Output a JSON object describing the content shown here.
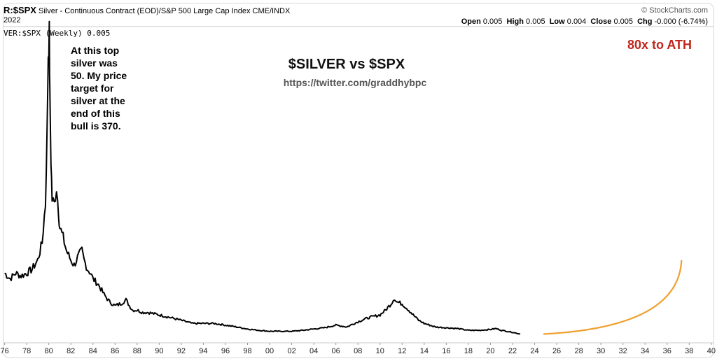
{
  "header": {
    "symbol": "R:$SPX",
    "description": "Silver - Continuous Contract (EOD)/S&P 500 Large Cap Index",
    "exchange": "CME/INDX",
    "date": "2022",
    "watermark": "© StockCharts.com",
    "ohlc": [
      {
        "label": "Open",
        "value": "0.005"
      },
      {
        "label": "High",
        "value": "0.005"
      },
      {
        "label": "Low",
        "value": "0.004"
      },
      {
        "label": "Close",
        "value": "0.005"
      },
      {
        "label": "Chg",
        "value": "-0.000 (-6.74%)"
      }
    ],
    "series_label": "VER:$SPX (Weekly) 0.005"
  },
  "annotations": {
    "title": "$SILVER vs $SPX",
    "url": "https://twitter.com/graddhybpc",
    "note_lines": [
      "At this top",
      "silver was",
      "50. My price",
      "target for",
      "silver at the",
      "end of this",
      "bull is 370."
    ],
    "target_label": "80x to ATH"
  },
  "colors": {
    "price_line": "#000000",
    "projection": "#f0a030",
    "target_text": "#c0261c",
    "url_text": "#555555"
  },
  "chart_data": {
    "type": "line",
    "title": "$SILVER vs $SPX",
    "xlabel": "",
    "ylabel": "",
    "x_ticks": [
      "76",
      "78",
      "80",
      "82",
      "84",
      "86",
      "88",
      "90",
      "92",
      "94",
      "96",
      "98",
      "00",
      "02",
      "04",
      "06",
      "08",
      "10",
      "12",
      "14",
      "16",
      "18",
      "20",
      "22",
      "24",
      "26",
      "28",
      "30",
      "32",
      "34",
      "36",
      "38",
      "40"
    ],
    "xlim": [
      1975.9,
      2040.2
    ],
    "series": [
      {
        "name": "",
        "x": [
          1976.0,
          1976.5,
          1977.0,
          1977.5,
          1978.0,
          1978.5,
          1979.0,
          1979.4,
          1979.7,
          1979.85,
          1979.95,
          1980.05,
          1980.1,
          1980.2,
          1980.3,
          1980.5,
          1980.7,
          1980.9,
          1981.0,
          1981.3,
          1981.6,
          1982.0,
          1982.3,
          1982.6,
          1983.0,
          1983.2,
          1983.5,
          1983.8,
          1984.0,
          1984.5,
          1985.0,
          1985.5,
          1986.0,
          1986.5,
          1987.0,
          1987.3,
          1987.6,
          1988.0,
          1988.5,
          1989.0,
          1990.0,
          1991.0,
          1992.0,
          1993.0,
          1994.0,
          1995.0,
          1996.0,
          1997.0,
          1998.0,
          1999.0,
          2000.0,
          2001.0,
          2002.0,
          2003.0,
          2004.0,
          2005.0,
          2006.0,
          2007.0,
          2008.0,
          2009.0,
          2010.0,
          2010.5,
          2011.0,
          2011.3,
          2011.5,
          2012.0,
          2012.5,
          2013.0,
          2013.5,
          2014.0,
          2015.0,
          2016.0,
          2017.0,
          2018.0,
          2019.0,
          2020.0,
          2020.5,
          2021.0,
          2022.0,
          2022.7
        ],
        "values": [
          0.3,
          0.26,
          0.3,
          0.28,
          0.3,
          0.33,
          0.4,
          0.55,
          0.95,
          1.9,
          3.2,
          3.5,
          2.4,
          1.5,
          1.0,
          0.95,
          1.15,
          0.85,
          0.7,
          0.6,
          0.48,
          0.4,
          0.36,
          0.42,
          0.48,
          0.4,
          0.33,
          0.3,
          0.26,
          0.22,
          0.16,
          0.12,
          0.1,
          0.11,
          0.13,
          0.1,
          0.08,
          0.08,
          0.07,
          0.07,
          0.06,
          0.05,
          0.04,
          0.03,
          0.03,
          0.03,
          0.025,
          0.02,
          0.015,
          0.012,
          0.01,
          0.01,
          0.01,
          0.012,
          0.015,
          0.018,
          0.025,
          0.02,
          0.035,
          0.05,
          0.06,
          0.08,
          0.11,
          0.14,
          0.12,
          0.11,
          0.085,
          0.06,
          0.04,
          0.03,
          0.02,
          0.018,
          0.016,
          0.012,
          0.012,
          0.014,
          0.016,
          0.012,
          0.008,
          0.005
        ]
      }
    ],
    "projection": {
      "x": [
        2024.8,
        2037.3
      ],
      "values": [
        0.005,
        0.4
      ]
    }
  }
}
